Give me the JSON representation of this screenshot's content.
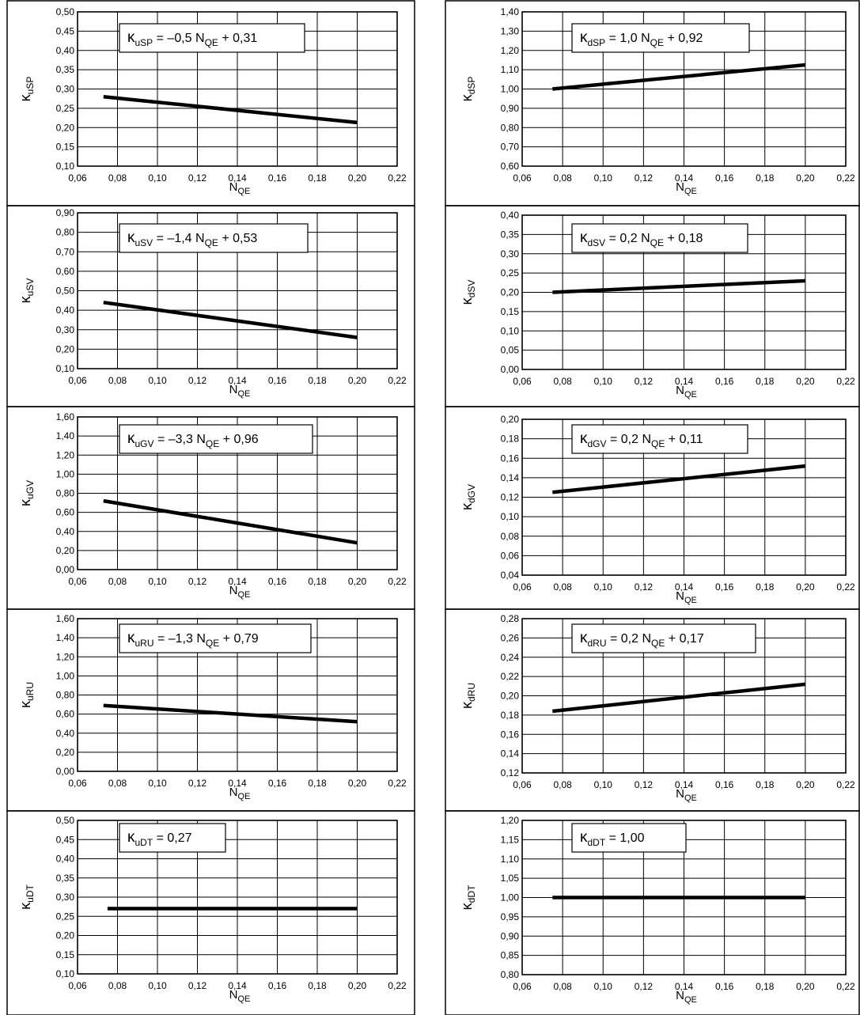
{
  "chart_data": [
    {
      "id": "uSP",
      "type": "line",
      "ylabel": {
        "sym": "κ",
        "sub": "uSP"
      },
      "equation": {
        "k": "κ",
        "sub": "uSP",
        "rhs": " = –0,5 N",
        "nsub": "QE",
        "tail": " + 0,31"
      },
      "xlabel": {
        "main": "N",
        "sub": "QE"
      },
      "xlim": [
        0.06,
        0.22
      ],
      "xticks": [
        "0,06",
        "0,08",
        "0,10",
        "0,12",
        "0,14",
        "0,16",
        "0,18",
        "0,20",
        "0,22"
      ],
      "ylim": [
        0.1,
        0.5
      ],
      "yticks": [
        "0,10",
        "0,15",
        "0,20",
        "0,25",
        "0,30",
        "0,35",
        "0,40",
        "0,45",
        "0,50"
      ],
      "series": [
        {
          "x": [
            0.073,
            0.2
          ],
          "y": [
            0.28,
            0.213
          ]
        }
      ]
    },
    {
      "id": "dSP",
      "type": "line",
      "ylabel": {
        "sym": "κ",
        "sub": "dSP"
      },
      "equation": {
        "k": "κ",
        "sub": "dSP",
        "rhs": " = 1,0 N",
        "nsub": "QE",
        "tail": " + 0,92"
      },
      "xlabel": {
        "main": "N",
        "sub": "QE"
      },
      "xlim": [
        0.06,
        0.22
      ],
      "xticks": [
        "0,06",
        "0,08",
        "0,10",
        "0,12",
        "0,14",
        "0,16",
        "0,18",
        "0,20",
        "0,22"
      ],
      "ylim": [
        0.6,
        1.4
      ],
      "yticks": [
        "0,60",
        "0,70",
        "0,80",
        "0,90",
        "1,00",
        "1,10",
        "1,20",
        "1,30",
        "1,40"
      ],
      "series": [
        {
          "x": [
            0.075,
            0.2
          ],
          "y": [
            1.0,
            1.125
          ]
        }
      ]
    },
    {
      "id": "uSV",
      "type": "line",
      "ylabel": {
        "sym": "κ",
        "sub": "uSV"
      },
      "equation": {
        "k": "κ",
        "sub": "uSV",
        "rhs": " = –1,4 N",
        "nsub": "QE",
        "tail": " + 0,53"
      },
      "xlabel": {
        "main": "N",
        "sub": "QE"
      },
      "xlim": [
        0.06,
        0.22
      ],
      "xticks": [
        "0,06",
        "0,08",
        "0,10",
        "0,12",
        "0,14",
        "0,16",
        "0,18",
        "0,20",
        "0,22"
      ],
      "ylim": [
        0.1,
        0.9
      ],
      "yticks": [
        "0,10",
        "0,20",
        "0,30",
        "0,40",
        "0,50",
        "0,60",
        "0,70",
        "0,80",
        "0,90"
      ],
      "series": [
        {
          "x": [
            0.073,
            0.2
          ],
          "y": [
            0.44,
            0.26
          ]
        }
      ]
    },
    {
      "id": "dSV",
      "type": "line",
      "ylabel": {
        "sym": "κ",
        "sub": "dSV"
      },
      "equation": {
        "k": "κ",
        "sub": "dSV",
        "rhs": " = 0,2 N",
        "nsub": "QE",
        "tail": " + 0,18"
      },
      "xlabel": {
        "main": "N",
        "sub": "QE"
      },
      "xlim": [
        0.06,
        0.22
      ],
      "xticks": [
        "0,06",
        "0,08",
        "0,10",
        "0,12",
        "0,14",
        "0,16",
        "0,18",
        "0,20",
        "0,22"
      ],
      "ylim": [
        0.0,
        0.4
      ],
      "yticks": [
        "0,00",
        "0,05",
        "0,10",
        "0,15",
        "0,20",
        "0,25",
        "0,30",
        "0,35",
        "0,40"
      ],
      "series": [
        {
          "x": [
            0.075,
            0.2
          ],
          "y": [
            0.2,
            0.23
          ]
        }
      ]
    },
    {
      "id": "uGV",
      "type": "line",
      "ylabel": {
        "sym": "κ",
        "sub": "uGV"
      },
      "equation": {
        "k": "κ",
        "sub": "uGV",
        "rhs": " = –3,3 N",
        "nsub": "QE",
        "tail": " + 0,96"
      },
      "xlabel": {
        "main": "N",
        "sub": "QE"
      },
      "xlim": [
        0.06,
        0.22
      ],
      "xticks": [
        "0,06",
        "0,08",
        "0,10",
        "0,12",
        "0,14",
        "0,16",
        "0,18",
        "0,20",
        "0,22"
      ],
      "ylim": [
        0.0,
        1.6
      ],
      "yticks": [
        "0,00",
        "0,20",
        "0,40",
        "0,60",
        "0,80",
        "1,00",
        "1,20",
        "1,40",
        "1,60"
      ],
      "series": [
        {
          "x": [
            0.073,
            0.2
          ],
          "y": [
            0.72,
            0.28
          ]
        }
      ]
    },
    {
      "id": "dGV",
      "type": "line",
      "ylabel": {
        "sym": "κ",
        "sub": "dGV"
      },
      "equation": {
        "k": "κ",
        "sub": "dGV",
        "rhs": " = 0,2 N",
        "nsub": "QE",
        "tail": " + 0,11"
      },
      "xlabel": {
        "main": "N",
        "sub": "QE"
      },
      "xlim": [
        0.06,
        0.22
      ],
      "xticks": [
        "0,06",
        "0,08",
        "0,10",
        "0,12",
        "0,14",
        "0,16",
        "0,18",
        "0,20",
        "0,22"
      ],
      "ylim": [
        0.04,
        0.2
      ],
      "yticks": [
        "0,04",
        "0,06",
        "0,08",
        "0,10",
        "0,12",
        "0,14",
        "0,16",
        "0,18",
        "0,20"
      ],
      "series": [
        {
          "x": [
            0.075,
            0.2
          ],
          "y": [
            0.125,
            0.152
          ]
        }
      ]
    },
    {
      "id": "uRU",
      "type": "line",
      "ylabel": {
        "sym": "κ",
        "sub": "uRU"
      },
      "equation": {
        "k": "κ",
        "sub": "uRU",
        "rhs": " = –1,3 N",
        "nsub": "QE",
        "tail": " + 0,79"
      },
      "xlabel": {
        "main": "N",
        "sub": "QE"
      },
      "xlim": [
        0.06,
        0.22
      ],
      "xticks": [
        "0,06",
        "0,08",
        "0,10",
        "0,12",
        "0,14",
        "0,16",
        "0,18",
        "0,20",
        "0,22"
      ],
      "ylim": [
        0.0,
        1.6
      ],
      "yticks": [
        "0,00",
        "0,20",
        "0,40",
        "0,60",
        "0,80",
        "1,00",
        "1,20",
        "1,40",
        "1,60"
      ],
      "series": [
        {
          "x": [
            0.073,
            0.2
          ],
          "y": [
            0.69,
            0.52
          ]
        }
      ]
    },
    {
      "id": "dRU",
      "type": "line",
      "ylabel": {
        "sym": "κ",
        "sub": "dRU"
      },
      "equation": {
        "k": "κ",
        "sub": "dRU",
        "rhs": " = 0,2 N",
        "nsub": "QE",
        "tail": " + 0,17"
      },
      "xlabel": {
        "main": "N",
        "sub": "QE"
      },
      "xlim": [
        0.06,
        0.22
      ],
      "xticks": [
        "0,06",
        "0,08",
        "0,10",
        "0,12",
        "0,14",
        "0,16",
        "0,18",
        "0,20",
        "0,22"
      ],
      "ylim": [
        0.12,
        0.28
      ],
      "yticks": [
        "0,12",
        "0,14",
        "0,16",
        "0,18",
        "0,20",
        "0,22",
        "0,24",
        "0,26",
        "0,28"
      ],
      "series": [
        {
          "x": [
            0.075,
            0.2
          ],
          "y": [
            0.184,
            0.212
          ]
        }
      ]
    },
    {
      "id": "uDT",
      "type": "line",
      "ylabel": {
        "sym": "κ",
        "sub": "uDT"
      },
      "equation": {
        "k": "κ",
        "sub": "uDT",
        "rhs": " = 0,27",
        "nsub": "",
        "tail": ""
      },
      "xlabel": {
        "main": "N",
        "sub": "QE"
      },
      "xlim": [
        0.06,
        0.22
      ],
      "xticks": [
        "0,06",
        "0,08",
        "0,10",
        "0,12",
        "0,14",
        "0,16",
        "0,18",
        "0,20",
        "0,22"
      ],
      "ylim": [
        0.1,
        0.5
      ],
      "yticks": [
        "0,10",
        "0,15",
        "0,20",
        "0,25",
        "0,30",
        "0,35",
        "0,40",
        "0,45",
        "0,50"
      ],
      "series": [
        {
          "x": [
            0.075,
            0.2
          ],
          "y": [
            0.27,
            0.27
          ]
        }
      ]
    },
    {
      "id": "dDT",
      "type": "line",
      "ylabel": {
        "sym": "κ",
        "sub": "dDT"
      },
      "equation": {
        "k": "κ",
        "sub": "dDT",
        "rhs": " = 1,00",
        "nsub": "",
        "tail": ""
      },
      "xlabel": {
        "main": "N",
        "sub": "QE"
      },
      "xlim": [
        0.06,
        0.22
      ],
      "xticks": [
        "0,06",
        "0,08",
        "0,10",
        "0,12",
        "0,14",
        "0,16",
        "0,18",
        "0,20",
        "0,22"
      ],
      "ylim": [
        0.8,
        1.2
      ],
      "yticks": [
        "0,80",
        "0,85",
        "0,90",
        "0,95",
        "1,00",
        "1,05",
        "1,10",
        "1,15",
        "1,20"
      ],
      "series": [
        {
          "x": [
            0.075,
            0.2
          ],
          "y": [
            1.0,
            1.0
          ]
        }
      ]
    }
  ]
}
